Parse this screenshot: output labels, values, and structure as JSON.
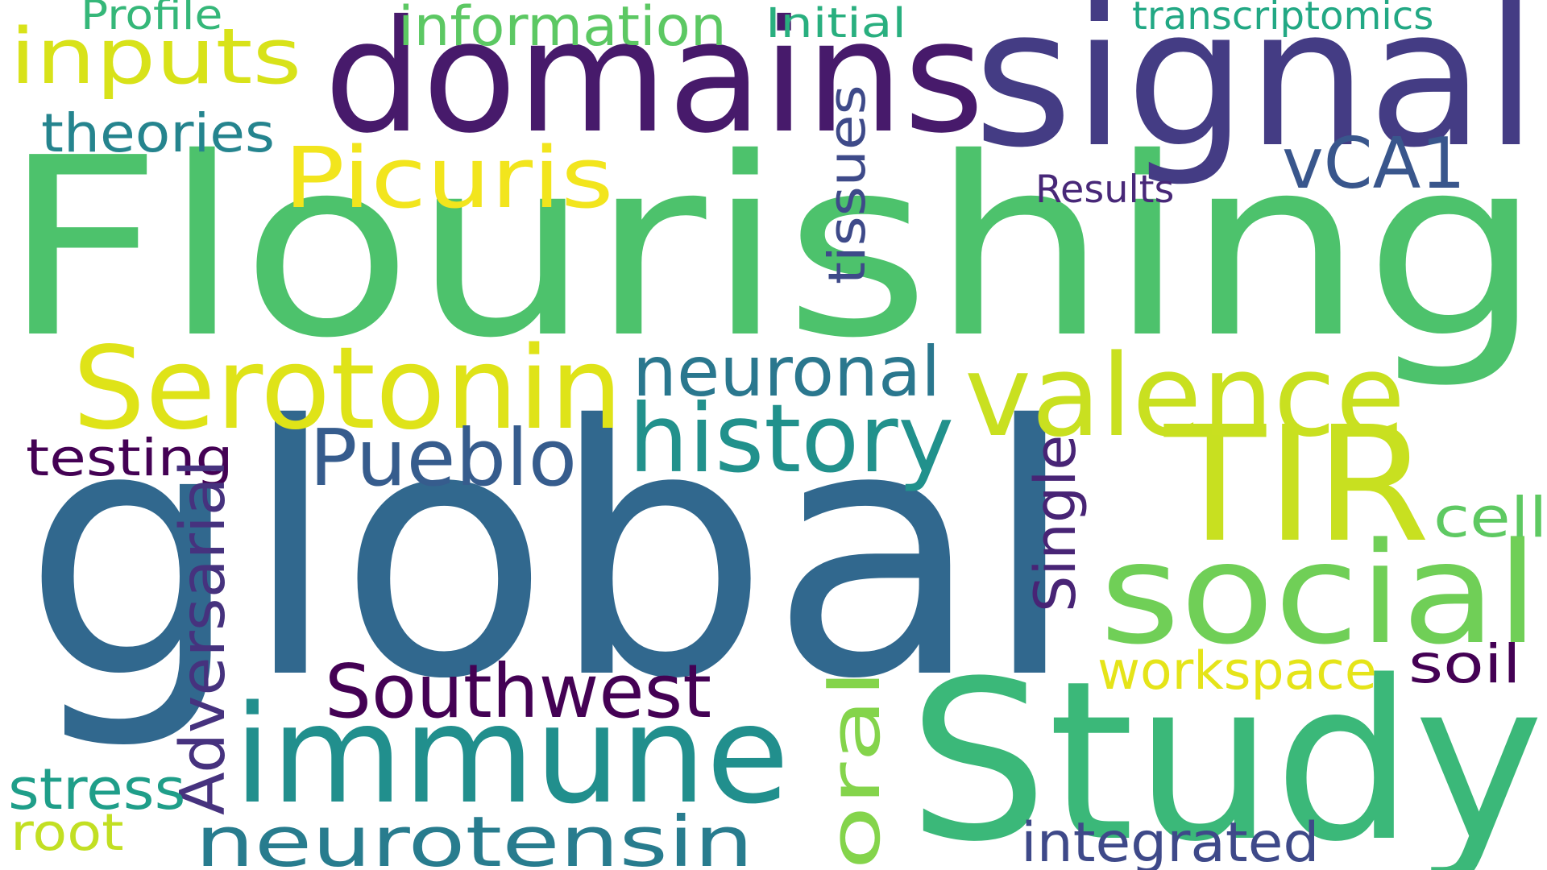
{
  "words": [
    {
      "text": "Flourishing",
      "color": "#4DC26C",
      "vertical": false
    },
    {
      "text": "global",
      "color": "#31688E",
      "vertical": false
    },
    {
      "text": "domains",
      "color": "#471A6B",
      "vertical": false
    },
    {
      "text": "signal",
      "color": "#443C84",
      "vertical": false
    },
    {
      "text": "Study",
      "color": "#3BB879",
      "vertical": false
    },
    {
      "text": "TIR",
      "color": "#C8E020",
      "vertical": false
    },
    {
      "text": "immune",
      "color": "#218F8D",
      "vertical": false
    },
    {
      "text": "social",
      "color": "#70CF57",
      "vertical": false
    },
    {
      "text": "Serotonin",
      "color": "#DFE318",
      "vertical": false
    },
    {
      "text": "valence",
      "color": "#C9E020",
      "vertical": false
    },
    {
      "text": "neurotensin",
      "color": "#287C8E",
      "vertical": false
    },
    {
      "text": "history",
      "color": "#21918C",
      "vertical": false
    },
    {
      "text": "inputs",
      "color": "#D8E219",
      "vertical": false
    },
    {
      "text": "Picuris",
      "color": "#F2E51D",
      "vertical": false
    },
    {
      "text": "Pueblo",
      "color": "#365C8D",
      "vertical": false
    },
    {
      "text": "Southwest",
      "color": "#440154",
      "vertical": false
    },
    {
      "text": "neuronal",
      "color": "#2A778E",
      "vertical": false
    },
    {
      "text": "vCA1",
      "color": "#39568C",
      "vertical": false
    },
    {
      "text": "oral",
      "color": "#84D44B",
      "vertical": true
    },
    {
      "text": "theories",
      "color": "#25848E",
      "vertical": false
    },
    {
      "text": "information",
      "color": "#5CC863",
      "vertical": false
    },
    {
      "text": "tissues",
      "color": "#3E4A89",
      "vertical": true
    },
    {
      "text": "testing",
      "color": "#440154",
      "vertical": false
    },
    {
      "text": "Adversarial",
      "color": "#46327E",
      "vertical": true
    },
    {
      "text": "Single",
      "color": "#482475",
      "vertical": true
    },
    {
      "text": "workspace",
      "color": "#E5E419",
      "vertical": false
    },
    {
      "text": "soil",
      "color": "#440154",
      "vertical": false
    },
    {
      "text": "cell",
      "color": "#5EC962",
      "vertical": false
    },
    {
      "text": "integrated",
      "color": "#3E4989",
      "vertical": false
    },
    {
      "text": "stress",
      "color": "#1F9E89",
      "vertical": false
    },
    {
      "text": "root",
      "color": "#C2DF23",
      "vertical": false
    },
    {
      "text": "Results",
      "color": "#482878",
      "vertical": false
    },
    {
      "text": "Profile",
      "color": "#35B779",
      "vertical": false
    },
    {
      "text": "Initial",
      "color": "#29AF7F",
      "vertical": false
    },
    {
      "text": "transcriptomics",
      "color": "#22A884",
      "vertical": false
    }
  ]
}
